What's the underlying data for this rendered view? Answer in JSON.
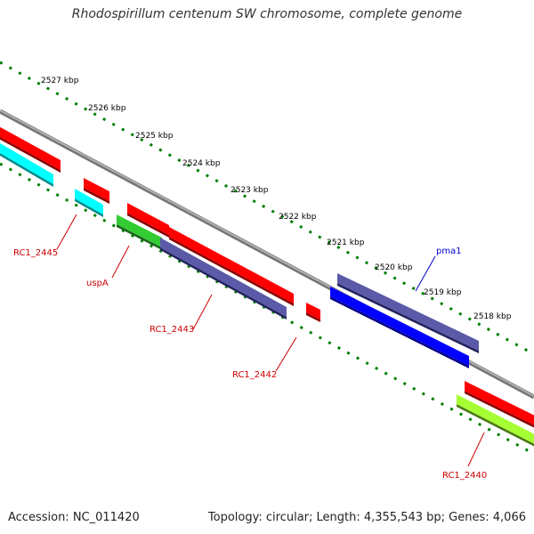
{
  "title": "Rhodospirillum centenum SW chromosome, complete genome",
  "footer": {
    "accession": "Accession: NC_011420",
    "summary": "Topology: circular; Length: 4,355,543 bp; Genes: 4,066"
  },
  "ticks": [
    "2527 kbp",
    "2526 kbp",
    "2525 kbp",
    "2524 kbp",
    "2523 kbp",
    "2522 kbp",
    "2521 kbp",
    "2520 kbp",
    "2519 kbp",
    "2518 kbp"
  ],
  "gene_labels": [
    "RC1_2445",
    "uspA",
    "RC1_2443",
    "RC1_2442",
    "RC1_2440",
    "pma1"
  ],
  "colors": {
    "cds": "#ff0000",
    "cds_dark": "#8a0000",
    "cyan": "#00ffff",
    "cyan_dark": "#008c8c",
    "slate": "#5a5aa8",
    "slate_dark": "#232360",
    "green": "#33cc33",
    "green_dark": "#1a661a",
    "lime": "#a6ff33",
    "lime_dark": "#4a7a14",
    "blue": "#0000ff",
    "blue_dark": "#00008a",
    "backbone": "#999999",
    "tick": "#008000",
    "label_red": "#cc0000",
    "label_blue": "#0000cc"
  }
}
